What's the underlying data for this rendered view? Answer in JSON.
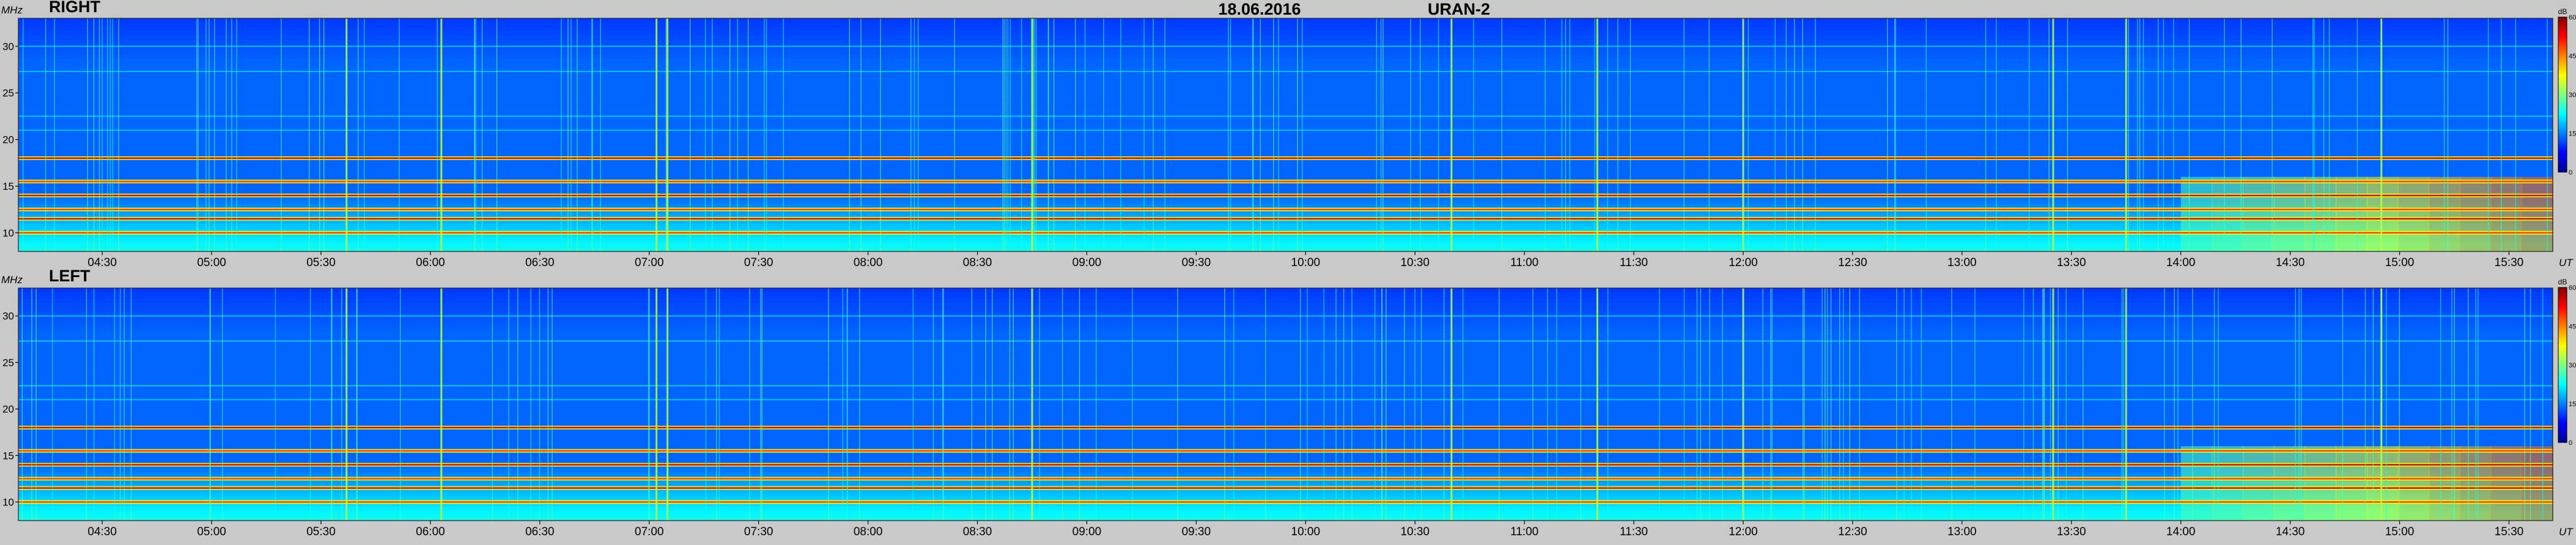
{
  "header": {
    "date": "18.06.2016",
    "instrument": "URAN-2"
  },
  "units": {
    "y": "MHz",
    "x": "UT"
  },
  "colorbar": {
    "unit": "dB",
    "ticks": [
      "60",
      "45",
      "30",
      "15",
      "0"
    ],
    "colors": [
      "#00008f",
      "#0000ff",
      "#0080ff",
      "#00ffff",
      "#80ff80",
      "#ffff00",
      "#ff8000",
      "#ff0000",
      "#800000"
    ]
  },
  "chart_data": [
    {
      "type": "heatmap",
      "title": "RIGHT",
      "x_ticks": [
        "04:30",
        "05:00",
        "05:30",
        "06:00",
        "06:30",
        "07:00",
        "07:30",
        "08:00",
        "08:30",
        "09:00",
        "09:30",
        "10:00",
        "10:30",
        "11:00",
        "11:30",
        "12:00",
        "12:30",
        "13:00",
        "13:30",
        "14:00",
        "14:30",
        "15:00",
        "15:30"
      ],
      "y_ticks": [
        30,
        25,
        20,
        15,
        10
      ],
      "ylim": [
        8,
        33
      ],
      "zlim": [
        0,
        60
      ],
      "features": {
        "bright_bands_MHz": [
          10,
          11.5,
          12.5,
          14,
          15.5,
          18
        ],
        "rfi_bursts_UT": [
          "05:37",
          "06:03",
          "07:02",
          "07:05",
          "08:45",
          "10:40",
          "11:20",
          "12:00",
          "13:25",
          "13:45",
          "14:55"
        ]
      }
    },
    {
      "type": "heatmap",
      "title": "LEFT",
      "x_ticks": [
        "04:30",
        "05:00",
        "05:30",
        "06:00",
        "06:30",
        "07:00",
        "07:30",
        "08:00",
        "08:30",
        "09:00",
        "09:30",
        "10:00",
        "10:30",
        "11:00",
        "11:30",
        "12:00",
        "12:30",
        "13:00",
        "13:30",
        "14:00",
        "14:30",
        "15:00",
        "15:30"
      ],
      "y_ticks": [
        30,
        25,
        20,
        15,
        10
      ],
      "ylim": [
        8,
        33
      ],
      "zlim": [
        0,
        60
      ],
      "features": {
        "bright_bands_MHz": [
          10,
          11.5,
          12.5,
          14,
          15.5,
          18
        ],
        "rfi_bursts_UT": [
          "05:37",
          "06:03",
          "07:02",
          "07:05",
          "08:45",
          "10:40",
          "11:20",
          "12:00",
          "13:25",
          "13:45",
          "14:55"
        ]
      }
    }
  ]
}
